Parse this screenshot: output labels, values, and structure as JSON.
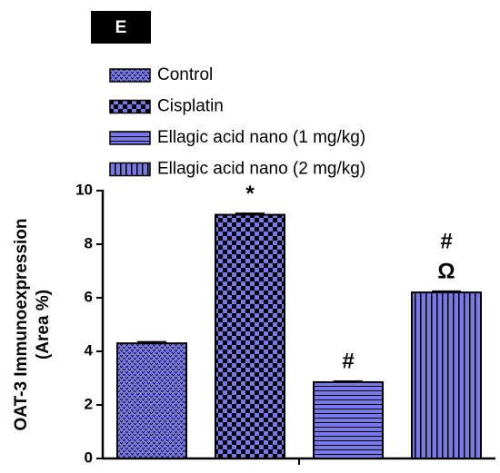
{
  "chart_data": {
    "type": "bar",
    "panel_label": "E",
    "categories": [
      "Control",
      "Cisplatin",
      "Ellagic acid nano (1 mg/kg)",
      "Ellagic acid nano (2 mg/kg)"
    ],
    "values": [
      4.3,
      9.1,
      2.85,
      6.2
    ],
    "errors": [
      0.05,
      0.05,
      0.03,
      0.04
    ],
    "patterns": [
      "dots",
      "checker",
      "horizontal",
      "vertical"
    ],
    "color": "#7878e8",
    "ylabel": [
      "OAT-3 Immunoexpression",
      "(Area %)"
    ],
    "ylim": [
      0,
      10
    ],
    "yticks": [
      0,
      2,
      4,
      6,
      8,
      10
    ],
    "annotations": [
      {
        "category": "Cisplatin",
        "text": "*"
      },
      {
        "category": "Ellagic acid nano (1 mg/kg)",
        "text": "#"
      },
      {
        "category": "Ellagic acid nano (2 mg/kg)",
        "text": "#"
      },
      {
        "category": "Ellagic acid nano (2 mg/kg)",
        "text": "Ω"
      }
    ]
  }
}
